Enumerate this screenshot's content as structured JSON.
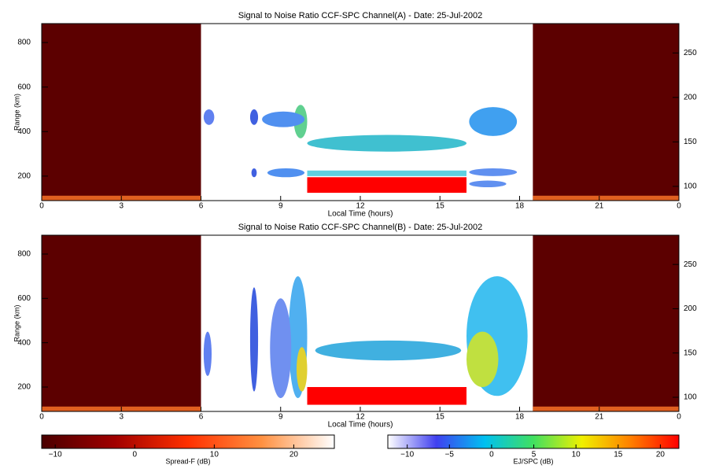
{
  "chart_data": [
    {
      "type": "heatmap",
      "title": "Signal to Noise Ratio CCF-SPC Channel(A) - Date: 25-Jul-2002",
      "x_label": "Local Time (hours)",
      "y_label": "Range (km)",
      "xlim": [
        0,
        24
      ],
      "xticks": [
        0,
        3,
        6,
        9,
        12,
        15,
        18,
        21,
        {
          "value": 24,
          "label": "0"
        }
      ],
      "ylim": [
        90,
        885
      ],
      "yticks": [
        200,
        400,
        600,
        800
      ],
      "y2lim": [
        84,
        283
      ],
      "y2ticks": [
        100,
        150,
        200,
        250
      ],
      "regions": [
        {
          "shape": "rect",
          "x": [
            0,
            6
          ],
          "y": [
            90,
            885
          ],
          "color": "#5c0000"
        },
        {
          "shape": "rect",
          "x": [
            18.5,
            24
          ],
          "y": [
            90,
            885
          ],
          "color": "#5c0000"
        },
        {
          "shape": "rect",
          "x": [
            0,
            6
          ],
          "y": [
            92,
            112
          ],
          "color": "#e06020"
        },
        {
          "shape": "rect",
          "x": [
            18.5,
            24
          ],
          "y": [
            92,
            112
          ],
          "color": "#e06020"
        },
        {
          "shape": "rect",
          "x": [
            10,
            16
          ],
          "y": [
            125,
            195
          ],
          "color": "#ff0000"
        },
        {
          "shape": "rect",
          "x": [
            10,
            16
          ],
          "y": [
            200,
            225
          ],
          "color": "#60d0e0"
        },
        {
          "shape": "ellipse",
          "x": [
            10,
            16
          ],
          "y": [
            310,
            385
          ],
          "color": "#40c0d0"
        },
        {
          "shape": "ellipse",
          "x": [
            16.1,
            17.9
          ],
          "y": [
            380,
            510
          ],
          "color": "#40a0f0"
        },
        {
          "shape": "ellipse",
          "x": [
            9.5,
            10
          ],
          "y": [
            370,
            520
          ],
          "color": "#60d090"
        },
        {
          "shape": "ellipse",
          "x": [
            8.3,
            9.9
          ],
          "y": [
            420,
            490
          ],
          "color": "#5090f0"
        },
        {
          "shape": "ellipse",
          "x": [
            6.1,
            6.5
          ],
          "y": [
            430,
            500
          ],
          "color": "#6080f0"
        },
        {
          "shape": "ellipse",
          "x": [
            7.85,
            8.15
          ],
          "y": [
            430,
            500
          ],
          "color": "#4060e0"
        },
        {
          "shape": "ellipse",
          "x": [
            7.9,
            8.1
          ],
          "y": [
            195,
            235
          ],
          "color": "#4060e0"
        },
        {
          "shape": "ellipse",
          "x": [
            8.5,
            9.9
          ],
          "y": [
            195,
            235
          ],
          "color": "#5090f0"
        },
        {
          "shape": "ellipse",
          "x": [
            16.1,
            17.9
          ],
          "y": [
            200,
            235
          ],
          "color": "#6090f0"
        },
        {
          "shape": "ellipse",
          "x": [
            16.1,
            17.5
          ],
          "y": [
            150,
            180
          ],
          "color": "#6090f0"
        }
      ]
    },
    {
      "type": "heatmap",
      "title": "Signal to Noise Ratio CCF-SPC Channel(B) - Date: 25-Jul-2002",
      "x_label": "Local Time (hours)",
      "y_label": "Range (km)",
      "xlim": [
        0,
        24
      ],
      "xticks": [
        0,
        3,
        6,
        9,
        12,
        15,
        18,
        21,
        {
          "value": 24,
          "label": "0"
        }
      ],
      "ylim": [
        90,
        885
      ],
      "yticks": [
        200,
        400,
        600,
        800
      ],
      "y2lim": [
        84,
        283
      ],
      "y2ticks": [
        100,
        150,
        200,
        250
      ],
      "regions": [
        {
          "shape": "rect",
          "x": [
            0,
            6
          ],
          "y": [
            90,
            885
          ],
          "color": "#5c0000"
        },
        {
          "shape": "rect",
          "x": [
            18.5,
            24
          ],
          "y": [
            90,
            885
          ],
          "color": "#5c0000"
        },
        {
          "shape": "rect",
          "x": [
            0,
            6
          ],
          "y": [
            92,
            112
          ],
          "color": "#e06020"
        },
        {
          "shape": "rect",
          "x": [
            18.5,
            24
          ],
          "y": [
            92,
            112
          ],
          "color": "#e06020"
        },
        {
          "shape": "ellipse",
          "x": [
            16,
            18.3
          ],
          "y": [
            160,
            700
          ],
          "color": "#40c0f0"
        },
        {
          "shape": "ellipse",
          "x": [
            16,
            17.2
          ],
          "y": [
            200,
            450
          ],
          "color": "#c0e040"
        },
        {
          "shape": "rect",
          "x": [
            10,
            16
          ],
          "y": [
            120,
            200
          ],
          "color": "#ff0000"
        },
        {
          "shape": "ellipse",
          "x": [
            10.3,
            15.8
          ],
          "y": [
            320,
            410
          ],
          "color": "#40b0e0"
        },
        {
          "shape": "ellipse",
          "x": [
            9.3,
            10
          ],
          "y": [
            150,
            700
          ],
          "color": "#50b0f0"
        },
        {
          "shape": "ellipse",
          "x": [
            9.6,
            10
          ],
          "y": [
            180,
            380
          ],
          "color": "#e0d030"
        },
        {
          "shape": "ellipse",
          "x": [
            8.6,
            9.4
          ],
          "y": [
            150,
            600
          ],
          "color": "#7090f0"
        },
        {
          "shape": "ellipse",
          "x": [
            7.85,
            8.15
          ],
          "y": [
            180,
            650
          ],
          "color": "#4060e0"
        },
        {
          "shape": "ellipse",
          "x": [
            6.1,
            6.4
          ],
          "y": [
            250,
            450
          ],
          "color": "#6080f0"
        }
      ]
    },
    {
      "type": "colorbar",
      "label": "Spread-F (dB)",
      "xlim": [
        -11.7,
        25.1
      ],
      "xticks": [
        {
          "value": -10,
          "label": "−10"
        },
        0,
        10,
        20
      ],
      "colors": [
        "#4a0000",
        "#a00000",
        "#ff3000",
        "#ff9040",
        "#ffffff"
      ]
    },
    {
      "type": "colorbar",
      "label": "EJ/SPC (dB)",
      "xlim": [
        -12.3,
        22.2
      ],
      "xticks": [
        {
          "value": -10,
          "label": "−10"
        },
        {
          "value": -5,
          "label": "−5"
        },
        0,
        5,
        10,
        15,
        20
      ],
      "colors": [
        "#ffffff",
        "#4040f0",
        "#00c0f0",
        "#40e060",
        "#f0f000",
        "#ff8000",
        "#ff0000"
      ]
    }
  ]
}
